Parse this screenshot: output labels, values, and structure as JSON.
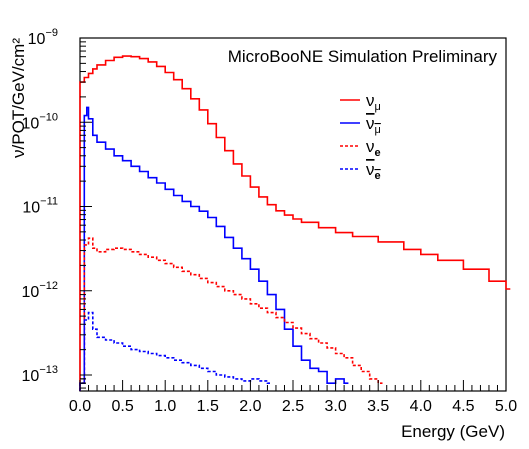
{
  "chart_data": {
    "type": "line",
    "title": "MicroBooNE Simulation Preliminary",
    "xlabel": "Energy (GeV)",
    "ylabel": "ν/POT/GeV/cm²",
    "xlim": [
      0,
      5.0
    ],
    "ylim": [
      8e-14,
      1e-09
    ],
    "yscale": "log",
    "grid": false,
    "legend_position": "top-right",
    "x_ticks": [
      "0.0",
      "0.5",
      "1.0",
      "1.5",
      "2.0",
      "2.5",
      "3.0",
      "3.5",
      "4.0",
      "4.5",
      "5.0"
    ],
    "y_ticks": [
      {
        "base": "10",
        "exp": "−9"
      },
      {
        "base": "10",
        "exp": "−10"
      },
      {
        "base": "10",
        "exp": "−11"
      },
      {
        "base": "10",
        "exp": "−12"
      },
      {
        "base": "10",
        "exp": "−13"
      }
    ],
    "series": [
      {
        "name": "ν_μ",
        "label_main": "ν",
        "label_sub": "μ",
        "bar": false,
        "color": "#ff0000",
        "dash": false,
        "x": [
          0.0,
          0.05,
          0.1,
          0.15,
          0.2,
          0.3,
          0.4,
          0.5,
          0.6,
          0.7,
          0.8,
          0.9,
          1.0,
          1.1,
          1.2,
          1.3,
          1.4,
          1.5,
          1.6,
          1.7,
          1.8,
          1.9,
          2.0,
          2.1,
          2.2,
          2.3,
          2.4,
          2.5,
          2.6,
          2.8,
          3.0,
          3.2,
          3.5,
          3.8,
          4.0,
          4.2,
          4.5,
          4.8,
          5.0
        ],
        "y": [
          3e-10,
          3.4e-10,
          3.8e-10,
          4.3e-10,
          4.8e-10,
          5.4e-10,
          5.9e-10,
          6.1e-10,
          6e-10,
          5.7e-10,
          5.2e-10,
          4.6e-10,
          3.9e-10,
          3.2e-10,
          2.5e-10,
          1.9e-10,
          1.4e-10,
          9.6e-11,
          6.6e-11,
          4.6e-11,
          3.2e-11,
          2.3e-11,
          1.7e-11,
          1.3e-11,
          1.05e-11,
          8.9e-12,
          7.9e-12,
          7.1e-12,
          6.5e-12,
          5.6e-12,
          4.9e-12,
          4.4e-12,
          3.8e-12,
          3.1e-12,
          2.7e-12,
          2.3e-12,
          1.8e-12,
          1.3e-12,
          1.05e-12
        ]
      },
      {
        "name": "ν̄_μ",
        "label_main": "ν",
        "label_sub": "μ",
        "bar": true,
        "color": "#0000ff",
        "dash": false,
        "x": [
          0.0,
          0.05,
          0.08,
          0.1,
          0.15,
          0.2,
          0.3,
          0.4,
          0.5,
          0.6,
          0.7,
          0.8,
          0.9,
          1.0,
          1.1,
          1.2,
          1.3,
          1.4,
          1.5,
          1.6,
          1.7,
          1.8,
          1.9,
          2.0,
          2.1,
          2.2,
          2.3,
          2.4,
          2.5,
          2.6,
          2.7,
          2.8,
          2.9,
          3.0,
          3.1
        ],
        "y": [
          8e-14,
          1.2e-10,
          1.5e-10,
          1.1e-10,
          7e-11,
          5.8e-11,
          4.8e-11,
          4e-11,
          3.5e-11,
          3e-11,
          2.6e-11,
          2.2e-11,
          1.9e-11,
          1.6e-11,
          1.35e-11,
          1.15e-11,
          1e-11,
          8.8e-12,
          7.4e-12,
          5.8e-12,
          4.3e-12,
          3.2e-12,
          2.4e-12,
          1.8e-12,
          1.3e-12,
          9e-13,
          6e-13,
          3.5e-13,
          2.2e-13,
          1.5e-13,
          1.2e-13,
          1.1e-13,
          8e-14,
          9e-14,
          8e-14
        ]
      },
      {
        "name": "ν_e",
        "label_main": "ν",
        "label_sub": "e",
        "bar": false,
        "color": "#ff0000",
        "dash": true,
        "x": [
          0.0,
          0.05,
          0.1,
          0.15,
          0.2,
          0.3,
          0.4,
          0.5,
          0.6,
          0.7,
          0.8,
          0.9,
          1.0,
          1.1,
          1.2,
          1.3,
          1.4,
          1.5,
          1.6,
          1.7,
          1.8,
          1.9,
          2.0,
          2.1,
          2.2,
          2.3,
          2.4,
          2.5,
          2.6,
          2.7,
          2.8,
          2.9,
          3.0,
          3.1,
          3.2,
          3.3,
          3.4,
          3.5
        ],
        "y": [
          8e-14,
          3.5e-12,
          4.2e-12,
          3.2e-12,
          2.9e-12,
          3.1e-12,
          3.2e-12,
          3.1e-12,
          2.9e-12,
          2.7e-12,
          2.5e-12,
          2.3e-12,
          2.1e-12,
          1.9e-12,
          1.7e-12,
          1.55e-12,
          1.4e-12,
          1.25e-12,
          1.12e-12,
          1e-12,
          9e-13,
          8e-13,
          7e-13,
          6.2e-13,
          5.5e-13,
          4.8e-13,
          4.2e-13,
          3.6e-13,
          3.1e-13,
          2.7e-13,
          2.4e-13,
          2.1e-13,
          1.8e-13,
          1.6e-13,
          1.3e-13,
          1.1e-13,
          9e-14,
          8e-14
        ]
      },
      {
        "name": "ν̄_e",
        "label_main": "ν",
        "label_sub": "e",
        "bar": true,
        "color": "#0000ff",
        "dash": true,
        "x": [
          0.0,
          0.05,
          0.1,
          0.15,
          0.2,
          0.3,
          0.4,
          0.5,
          0.6,
          0.7,
          0.8,
          0.9,
          1.0,
          1.1,
          1.2,
          1.3,
          1.4,
          1.5,
          1.6,
          1.7,
          1.8,
          1.9,
          2.0,
          2.1,
          2.2
        ],
        "y": [
          8e-14,
          4.5e-13,
          5.5e-13,
          3.5e-13,
          2.8e-13,
          2.6e-13,
          2.4e-13,
          2.2e-13,
          2e-13,
          1.9e-13,
          1.8e-13,
          1.7e-13,
          1.6e-13,
          1.5e-13,
          1.4e-13,
          1.3e-13,
          1.2e-13,
          1.1e-13,
          1e-13,
          9.5e-14,
          9e-14,
          8.5e-14,
          9e-14,
          8.5e-14,
          8e-14
        ]
      }
    ]
  }
}
